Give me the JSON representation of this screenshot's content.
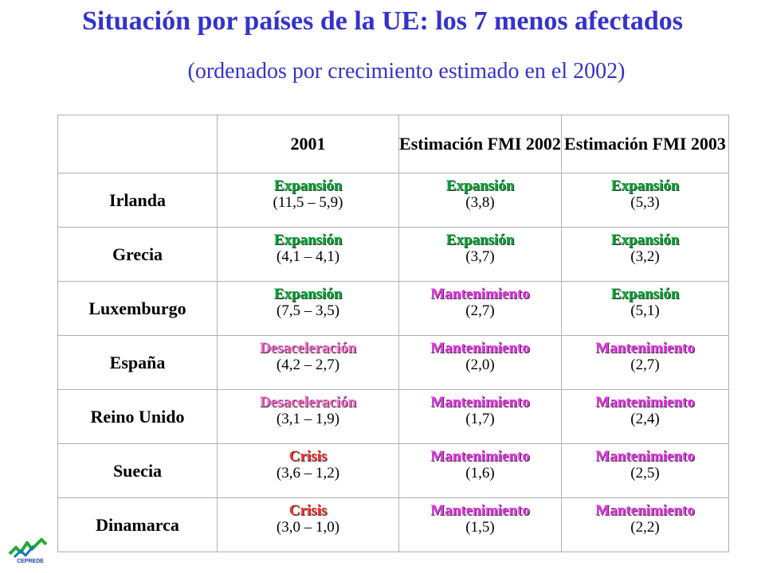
{
  "title": "Situación por países de la UE: los 7 menos afectados",
  "subtitle": "(ordenados por crecimiento estimado en el 2002)",
  "colors": {
    "title": "#3333cc",
    "expansion": "#00aa33",
    "mantenimiento": "#ee33ee",
    "desaceleracion": "#ff66cc",
    "crisis": "#ff3333"
  },
  "table": {
    "headers": [
      "",
      "2001",
      "Estimación FMI 2002",
      "Estimación FMI 2003"
    ],
    "rows": [
      {
        "country": "Irlanda",
        "cells": [
          {
            "status": "Expansión",
            "value": "(11,5 – 5,9)",
            "kind": "expansion"
          },
          {
            "status": "Expansión",
            "value": "(3,8)",
            "kind": "expansion"
          },
          {
            "status": "Expansión",
            "value": "(5,3)",
            "kind": "expansion"
          }
        ]
      },
      {
        "country": "Grecia",
        "cells": [
          {
            "status": "Expansión",
            "value": "(4,1 – 4,1)",
            "kind": "expansion"
          },
          {
            "status": "Expansión",
            "value": "(3,7)",
            "kind": "expansion"
          },
          {
            "status": "Expansión",
            "value": "(3,2)",
            "kind": "expansion"
          }
        ]
      },
      {
        "country": "Luxemburgo",
        "cells": [
          {
            "status": "Expansión",
            "value": "(7,5 – 3,5)",
            "kind": "expansion"
          },
          {
            "status": "Mantenimiento",
            "value": "(2,7)",
            "kind": "mantenimiento"
          },
          {
            "status": "Expansión",
            "value": "(5,1)",
            "kind": "expansion"
          }
        ]
      },
      {
        "country": "España",
        "cells": [
          {
            "status": "Desaceleración",
            "value": "(4,2 – 2,7)",
            "kind": "desaceleracion"
          },
          {
            "status": "Mantenimiento",
            "value": "(2,0)",
            "kind": "mantenimiento"
          },
          {
            "status": "Mantenimiento",
            "value": "(2,7)",
            "kind": "mantenimiento"
          }
        ]
      },
      {
        "country": "Reino Unido",
        "cells": [
          {
            "status": "Desaceleración",
            "value": "(3,1 – 1,9)",
            "kind": "desaceleracion"
          },
          {
            "status": "Mantenimiento",
            "value": "(1,7)",
            "kind": "mantenimiento"
          },
          {
            "status": "Mantenimiento",
            "value": "(2,4)",
            "kind": "mantenimiento"
          }
        ]
      },
      {
        "country": "Suecia",
        "cells": [
          {
            "status": "Crisis",
            "value": "(3,6 – 1,2)",
            "kind": "crisis"
          },
          {
            "status": "Mantenimiento",
            "value": "(1,6)",
            "kind": "mantenimiento"
          },
          {
            "status": "Mantenimiento",
            "value": "(2,5)",
            "kind": "mantenimiento"
          }
        ]
      },
      {
        "country": "Dinamarca",
        "cells": [
          {
            "status": "Crisis",
            "value": "(3,0 – 1,0)",
            "kind": "crisis"
          },
          {
            "status": "Mantenimiento",
            "value": "(1,5)",
            "kind": "mantenimiento"
          },
          {
            "status": "Mantenimiento",
            "value": "(2,2)",
            "kind": "mantenimiento"
          }
        ]
      }
    ]
  },
  "logo": {
    "text": "CEPREDE",
    "icon": "ceprede-logo-icon"
  }
}
